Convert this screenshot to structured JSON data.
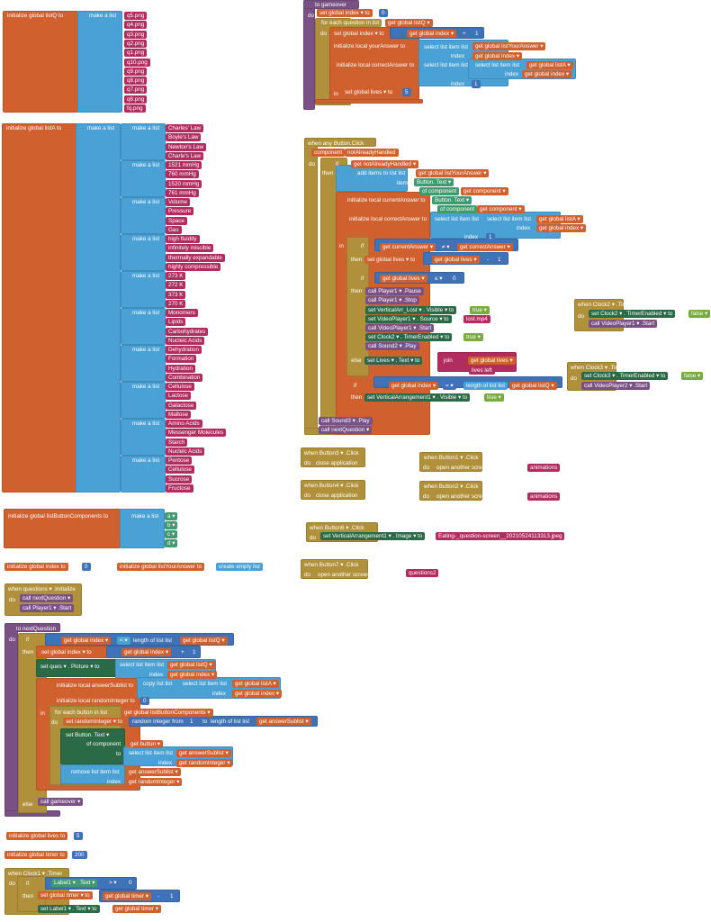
{
  "colors": {
    "variable": "#d0602e",
    "list": "#49a1d5",
    "math": "#3f72b6",
    "text": "#b22d5f",
    "control": "#b0903a",
    "procedure": "#7a5185",
    "component_setter": "#2a6a46",
    "component_getter": "#3f9a70",
    "logic": "#78ac42"
  },
  "listQ": {
    "t": [
      "initialize global listQ to",
      "make a list",
      "q5.png",
      "q4.png",
      "q3.png",
      "q2.png",
      "q1.png",
      "q10.png",
      "q9.png",
      "q8.png",
      "q7.png",
      "q6.png",
      "fq.png"
    ]
  },
  "listA": {
    "header": "initialize global listA to",
    "make": "make a list",
    "sub_make": "make a list",
    "sublists": [
      [
        "Charles' Law",
        "Boyle's Law",
        "Newton's Law",
        "Charle's Law"
      ],
      [
        "1521 mmHg",
        "760 mmHg",
        "1520 mmHg",
        "761 mmHg"
      ],
      [
        "Volume",
        "Pressure",
        "Space",
        "Gas"
      ],
      [
        "high fluidity",
        "infinitely miscible",
        "thermally expandable",
        "highly compressible"
      ],
      [
        "273 K",
        "272 K",
        "373 K",
        "270 K"
      ],
      [
        "Monomers",
        "Lipids",
        "Carbohydrates",
        "Nucleic Acids"
      ],
      [
        "Dehydration",
        "Formation",
        "Hydration",
        "Combination"
      ],
      [
        "Cellulose",
        "Lactose",
        "Galactose",
        "Maltose"
      ],
      [
        "Amino Acids",
        "Messenger Molecules",
        "Starch",
        "Nucleic Acids"
      ],
      [
        "Pentose",
        "Cellulose",
        "Sucrose",
        "Fructose"
      ]
    ]
  },
  "gameover": {
    "t": [
      "to gameover",
      "do",
      "set global index ▾ to",
      "0",
      "for each question in list",
      "get global listQ ▾",
      "do",
      "set global index ▾ to",
      "get global index ▾",
      "+",
      "1",
      "initialize local yourAnswer to",
      "select list item list",
      "get global listYourAnswer ▾",
      "index",
      "get global index ▾",
      "initialize local correctAnswer to",
      "select list item list",
      "select list item list",
      "get global listA ▾",
      "index",
      "get global index ▾",
      "index",
      "1",
      "in",
      "set global lives ▾ to",
      "5"
    ]
  },
  "anyButton": {
    "t": [
      "when any Button.Click",
      "component",
      "notAlreadyHandled",
      "do",
      "if",
      "get notAlreadyHandled ▾",
      "then",
      "add items to list list",
      "get global listYourAnswer ▾",
      "item",
      "Button. Text ▾",
      "of component",
      "get component ▾",
      "initialize local currentAnswer to",
      "Button. Text ▾",
      "of component",
      "get component ▾",
      "initialize local correctAnswer to",
      "select list item list",
      "select list item list",
      "get global listA ▾",
      "index",
      "get global index ▾",
      "index",
      "1",
      "in",
      "if",
      "get currentAnswer ▾",
      "≠ ▾",
      "get correctAnswer ▾",
      "then",
      "set global lives ▾ to",
      "get global lives ▾",
      "-",
      "1",
      "if",
      "get global lives ▾",
      "≤ ▾",
      "0",
      "then",
      "call Player1 ▾ .Pause",
      "call Player1 ▾ .Stop",
      "set VerticalArr_Lost ▾ . Visible ▾ to",
      "true ▾",
      "set VideoPlayer1 ▾ . Source ▾ to",
      "lost.mp4",
      "call VideoPlayer1 ▾ .Start",
      "set Clock2 ▾ . TimerEnabled ▾ to",
      "true ▾",
      "call Sound2 ▾ .Play",
      "else",
      "set Lives ▾ . Text ▾ to",
      "join",
      "get global lives ▾",
      "lives left",
      "if",
      "get global index ▾",
      "= ▾",
      "length of list list",
      "get global listQ ▾",
      "then",
      "set VerticalArrangement1 ▾ . Visible ▾ to",
      "true ▾",
      "call Sound3 ▾ .Play",
      "call nextQuestion ▾"
    ]
  },
  "clock2": {
    "t": [
      "when Clock2 ▾ .Timer",
      "do",
      "set Clock2 ▾ . TimerEnabled ▾ to",
      "false ▾",
      "call VideoPlayer1 ▾ .Start"
    ]
  },
  "clock3": {
    "t": [
      "when Clock3 ▾ .Timer",
      "do",
      "set Clock3 ▾ . TimerEnabled ▾ to",
      "false ▾",
      "call VideoPlayer2 ▾ .Start"
    ]
  },
  "button3": {
    "t": [
      "when Button3 ▾ .Click",
      "do",
      "close application"
    ]
  },
  "button4": {
    "t": [
      "when Button4 ▾ .Click",
      "do",
      "close application"
    ]
  },
  "button1": {
    "t": [
      "when Button1 ▾ .Click",
      "do",
      "open another screen  screenName",
      "animations"
    ]
  },
  "button2": {
    "t": [
      "when Button2 ▾ .Click",
      "do",
      "open another screen  screenName",
      "animations"
    ]
  },
  "button6": {
    "t": [
      "when Button6 ▾ .Click",
      "do",
      "set VerticalArrangement1 ▾ . Image ▾ to",
      "Eating-_question-screen__20210524113313.jpeg"
    ]
  },
  "button7": {
    "t": [
      "when Button7 ▾ .Click",
      "do",
      "open another screen  screenName",
      "questions2"
    ]
  },
  "listButtonComponents": {
    "t": [
      "initialize global listButtonComponents to",
      "make a list",
      "a ▾",
      "b ▾",
      "c ▾",
      "d ▾"
    ]
  },
  "indexInit": {
    "t": [
      "initialize global index to",
      "0"
    ]
  },
  "listYourAnswerInit": {
    "t": [
      "initialize global listYourAnswer to",
      "create empty list"
    ]
  },
  "questionsInit": {
    "t": [
      "when questions ▾ .Initialize",
      "do",
      "call nextQuestion ▾",
      "call Player1 ▾ .Start"
    ]
  },
  "nextQuestion": {
    "t": [
      "to nextQuestion",
      "do",
      "if",
      "get global index ▾",
      "< ▾",
      "length of list list",
      "get global listQ ▾",
      "then",
      "set global index ▾ to",
      "get global index ▾",
      "+",
      "1",
      "set ques ▾ . Picture ▾ to",
      "select list item list",
      "get global listQ ▾",
      "index",
      "get global index ▾",
      "initialize local answerSublist to",
      "copy list list",
      "select list item list",
      "get global listA ▾",
      "index",
      "get global index ▾",
      "initialize local randomInteger to",
      "0",
      "in",
      "for each button in list",
      "get global listButtonComponents ▾",
      "do",
      "set randomInteger ▾ to",
      "random integer from",
      "1",
      "to",
      "length of list list",
      "get answerSublist ▾",
      "set Button. Text ▾",
      "of component",
      "get button ▾",
      "to",
      "select list item list",
      "get answerSublist ▾",
      "index",
      "get randomInteger ▾",
      "remove list item list",
      "get answerSublist ▾",
      "index",
      "get randomInteger ▾",
      "else",
      "call gameover ▾"
    ]
  },
  "livesInit": {
    "t": [
      "initialize global lives to",
      "5"
    ]
  },
  "timerInit": {
    "t": [
      "initialize global timer to",
      "200"
    ]
  },
  "clock1": {
    "t": [
      "when Clock1 ▾ .Timer",
      "do",
      "if",
      "Label1 ▾ . Text ▾",
      "> ▾",
      "0",
      "then",
      "set global timer ▾ to",
      "get global timer ▾",
      "-",
      "1",
      "set Label1 ▾ . Text ▾ to",
      "get global timer ▾"
    ]
  }
}
